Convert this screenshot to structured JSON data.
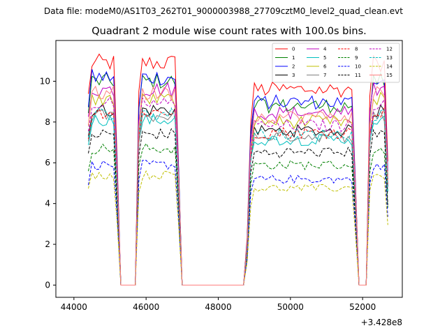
{
  "figure": {
    "suptitle": "Data file: modeM0/AS1T03_262T01_9000003988_27709cztM0_level2_quad_clean.evt"
  },
  "chart_data": {
    "type": "line",
    "title": "Quadrant 2 module wise count rates with 100.0s bins.",
    "xlabel": "",
    "ylabel": "",
    "offset_label": "+3.428e8",
    "x_offset": 342800000,
    "xlim": [
      43500,
      53100
    ],
    "ylim": [
      -0.6,
      12.0
    ],
    "x_ticks": [
      44000,
      46000,
      48000,
      50000,
      52000
    ],
    "x_tick_labels": [
      "44000",
      "46000",
      "48000",
      "50000",
      "52000"
    ],
    "y_ticks": [
      0,
      2,
      4,
      6,
      8,
      10
    ],
    "y_tick_labels": [
      "0",
      "2",
      "4",
      "6",
      "8",
      "10"
    ],
    "legend_position": "upper right",
    "series": [
      {
        "name": "0",
        "level": 10.9,
        "color": "#ff0000",
        "dash": "solid"
      },
      {
        "name": "1",
        "level": 10.0,
        "color": "#008000",
        "dash": "solid"
      },
      {
        "name": "2",
        "level": 10.2,
        "color": "#0000ff",
        "dash": "solid"
      },
      {
        "name": "3",
        "level": 8.6,
        "color": "#000000",
        "dash": "solid"
      },
      {
        "name": "4",
        "level": 9.6,
        "color": "#bf00bf",
        "dash": "solid"
      },
      {
        "name": "5",
        "level": 8.1,
        "color": "#00bfbf",
        "dash": "solid"
      },
      {
        "name": "6",
        "level": 9.1,
        "color": "#bfbf00",
        "dash": "solid"
      },
      {
        "name": "7",
        "level": 8.3,
        "color": "#808080",
        "dash": "solid"
      },
      {
        "name": "8",
        "level": 8.5,
        "color": "#ff0000",
        "dash": "dashed"
      },
      {
        "name": "9",
        "level": 6.7,
        "color": "#008000",
        "dash": "dashed"
      },
      {
        "name": "10",
        "level": 5.9,
        "color": "#0000ff",
        "dash": "dashed"
      },
      {
        "name": "11",
        "level": 7.4,
        "color": "#000000",
        "dash": "dashed"
      },
      {
        "name": "12",
        "level": 8.9,
        "color": "#bf00bf",
        "dash": "dashed"
      },
      {
        "name": "13",
        "level": 8.4,
        "color": "#00bfbf",
        "dash": "dashed"
      },
      {
        "name": "14",
        "level": 5.4,
        "color": "#bfbf00",
        "dash": "dashed"
      },
      {
        "name": "15",
        "level": 9.4,
        "color": "#ff8080",
        "dash": "solid"
      }
    ],
    "active_intervals": [
      [
        44400,
        45200
      ],
      [
        45800,
        46900
      ],
      [
        48800,
        51800
      ],
      [
        52200,
        52700
      ]
    ]
  }
}
